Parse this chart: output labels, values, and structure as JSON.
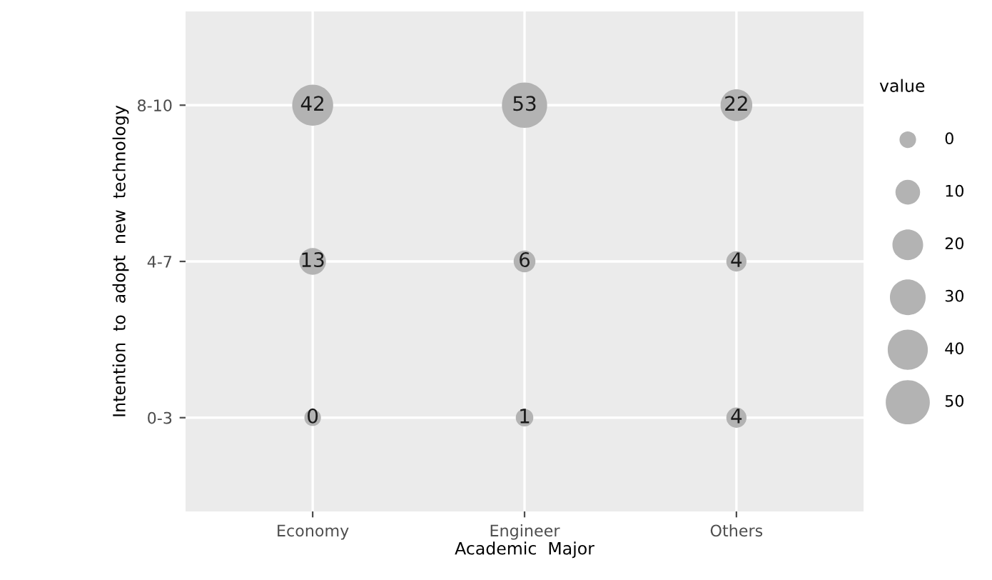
{
  "chart_data": [
    {
      "type": "heatmap",
      "xlabel": "Academic  Major",
      "ylabel": "Intention  to  adopt  new  technology",
      "categories": [
        "Economy",
        "Engineer",
        "Others"
      ],
      "y_categories": [
        "8-10",
        "4-7",
        "0-3"
      ],
      "cells": [
        [
          42,
          53,
          22
        ],
        [
          13,
          6,
          4
        ],
        [
          0,
          1,
          4
        ]
      ],
      "color": "#b3b3b3",
      "data_labels": true,
      "grid": true
    },
    {
      "type": "other",
      "title": "value",
      "values": [
        0,
        10,
        20,
        30,
        40,
        50
      ],
      "color": "#b3b3b3",
      "data_labels": true
    }
  ]
}
